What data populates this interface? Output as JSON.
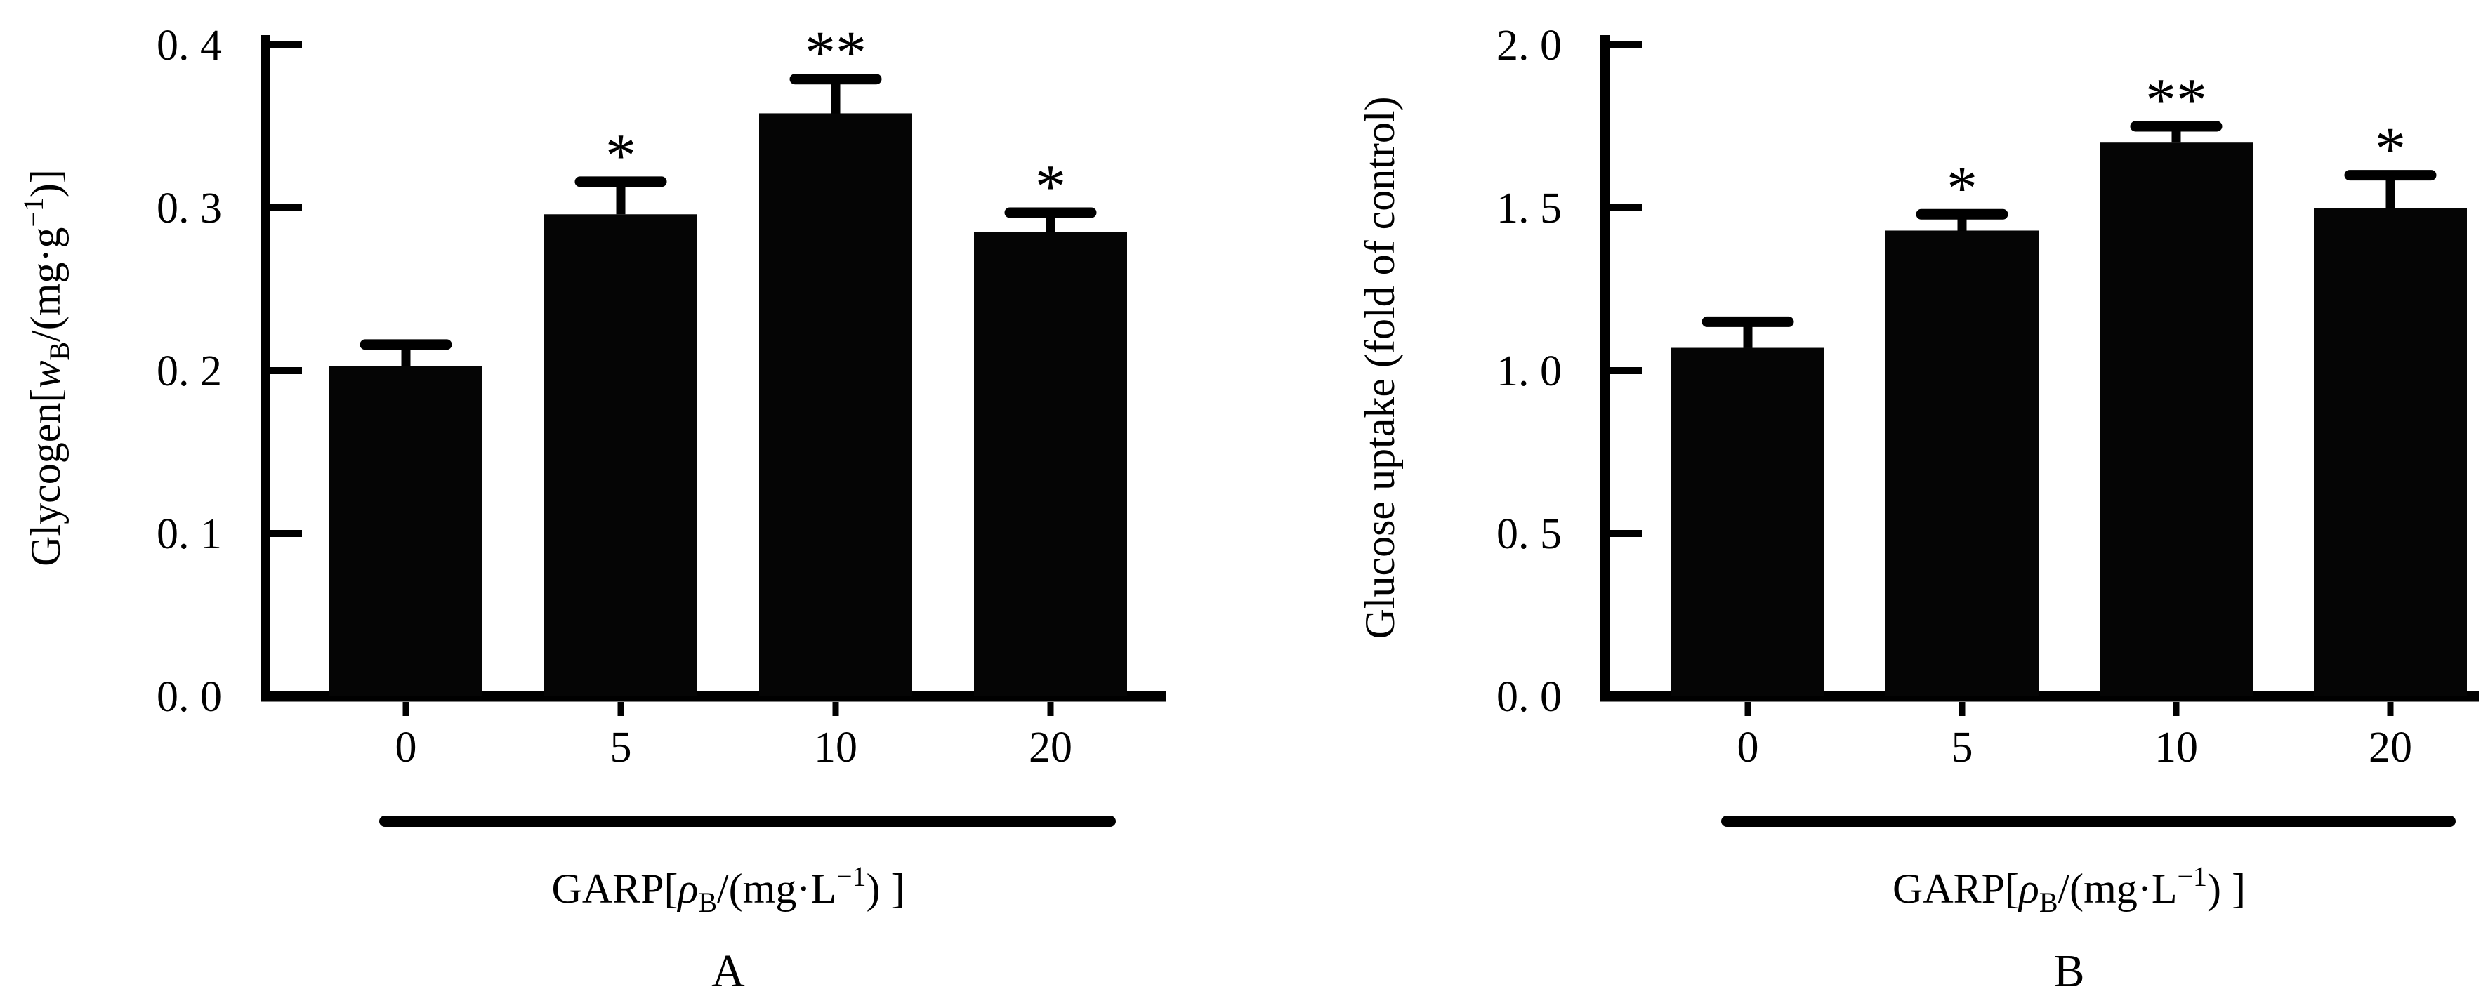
{
  "figure": {
    "background": "#ffffff",
    "bar_color": "#050505",
    "axis_color": "#000000",
    "text_color": "#000000",
    "panels": [
      "A",
      "B"
    ]
  },
  "chart_data": [
    {
      "type": "bar",
      "panel": "A",
      "title": "",
      "ylabel": "Glycogen[wB/(mg·g−1)]",
      "ylabel_parts": [
        {
          "t": "Glycogen["
        },
        {
          "t": "w",
          "italic": true
        },
        {
          "t": "B",
          "v": "sub"
        },
        {
          "t": "/(mg·g"
        },
        {
          "t": "−1",
          "v": "sup"
        },
        {
          "t": ")]"
        }
      ],
      "xlabel": "GARP[ρB/(mg·L−1) ]",
      "xlabel_parts": [
        {
          "t": "GARP["
        },
        {
          "t": "ρ",
          "italic": true
        },
        {
          "t": "B",
          "v": "sub"
        },
        {
          "t": "/(mg·L"
        },
        {
          "t": "−1",
          "v": "sup"
        },
        {
          "t": ") ]"
        }
      ],
      "categories": [
        "0",
        "5",
        "10",
        "20"
      ],
      "values": [
        0.203,
        0.296,
        0.358,
        0.285
      ],
      "errors": [
        0.013,
        0.02,
        0.021,
        0.012
      ],
      "significance": [
        "",
        "*",
        "**",
        "*"
      ],
      "ylim": [
        0,
        0.4
      ],
      "yticks": [
        {
          "value": 0.4,
          "label": "0. 4"
        },
        {
          "value": 0.3,
          "label": "0. 3"
        },
        {
          "value": 0.2,
          "label": "0. 2"
        },
        {
          "value": 0.1,
          "label": "0. 1"
        },
        {
          "value": 0.0,
          "label": "0. 0"
        }
      ],
      "grid": false,
      "legend": null
    },
    {
      "type": "bar",
      "panel": "B",
      "title": "",
      "ylabel": "Glucose uptake (fold of control)",
      "ylabel_parts": [
        {
          "t": "Glucose uptake (fold of control)"
        }
      ],
      "xlabel": "GARP[ρB/(mg·L−1) ]",
      "xlabel_parts": [
        {
          "t": "GARP["
        },
        {
          "t": "ρ",
          "italic": true
        },
        {
          "t": "B",
          "v": "sub"
        },
        {
          "t": "/(mg·L"
        },
        {
          "t": "−1",
          "v": "sup"
        },
        {
          "t": ") ]"
        }
      ],
      "categories": [
        "0",
        "5",
        "10",
        "20"
      ],
      "values": [
        1.07,
        1.43,
        1.7,
        1.5
      ],
      "errors": [
        0.08,
        0.05,
        0.05,
        0.1
      ],
      "significance": [
        "",
        "*",
        "**",
        "*"
      ],
      "ylim": [
        0,
        2.0
      ],
      "yticks": [
        {
          "value": 2.0,
          "label": "2. 0"
        },
        {
          "value": 1.5,
          "label": "1. 5"
        },
        {
          "value": 1.0,
          "label": "1. 0"
        },
        {
          "value": 0.5,
          "label": "0. 5"
        },
        {
          "value": 0.0,
          "label": "0. 0"
        }
      ],
      "grid": false,
      "legend": null
    }
  ]
}
